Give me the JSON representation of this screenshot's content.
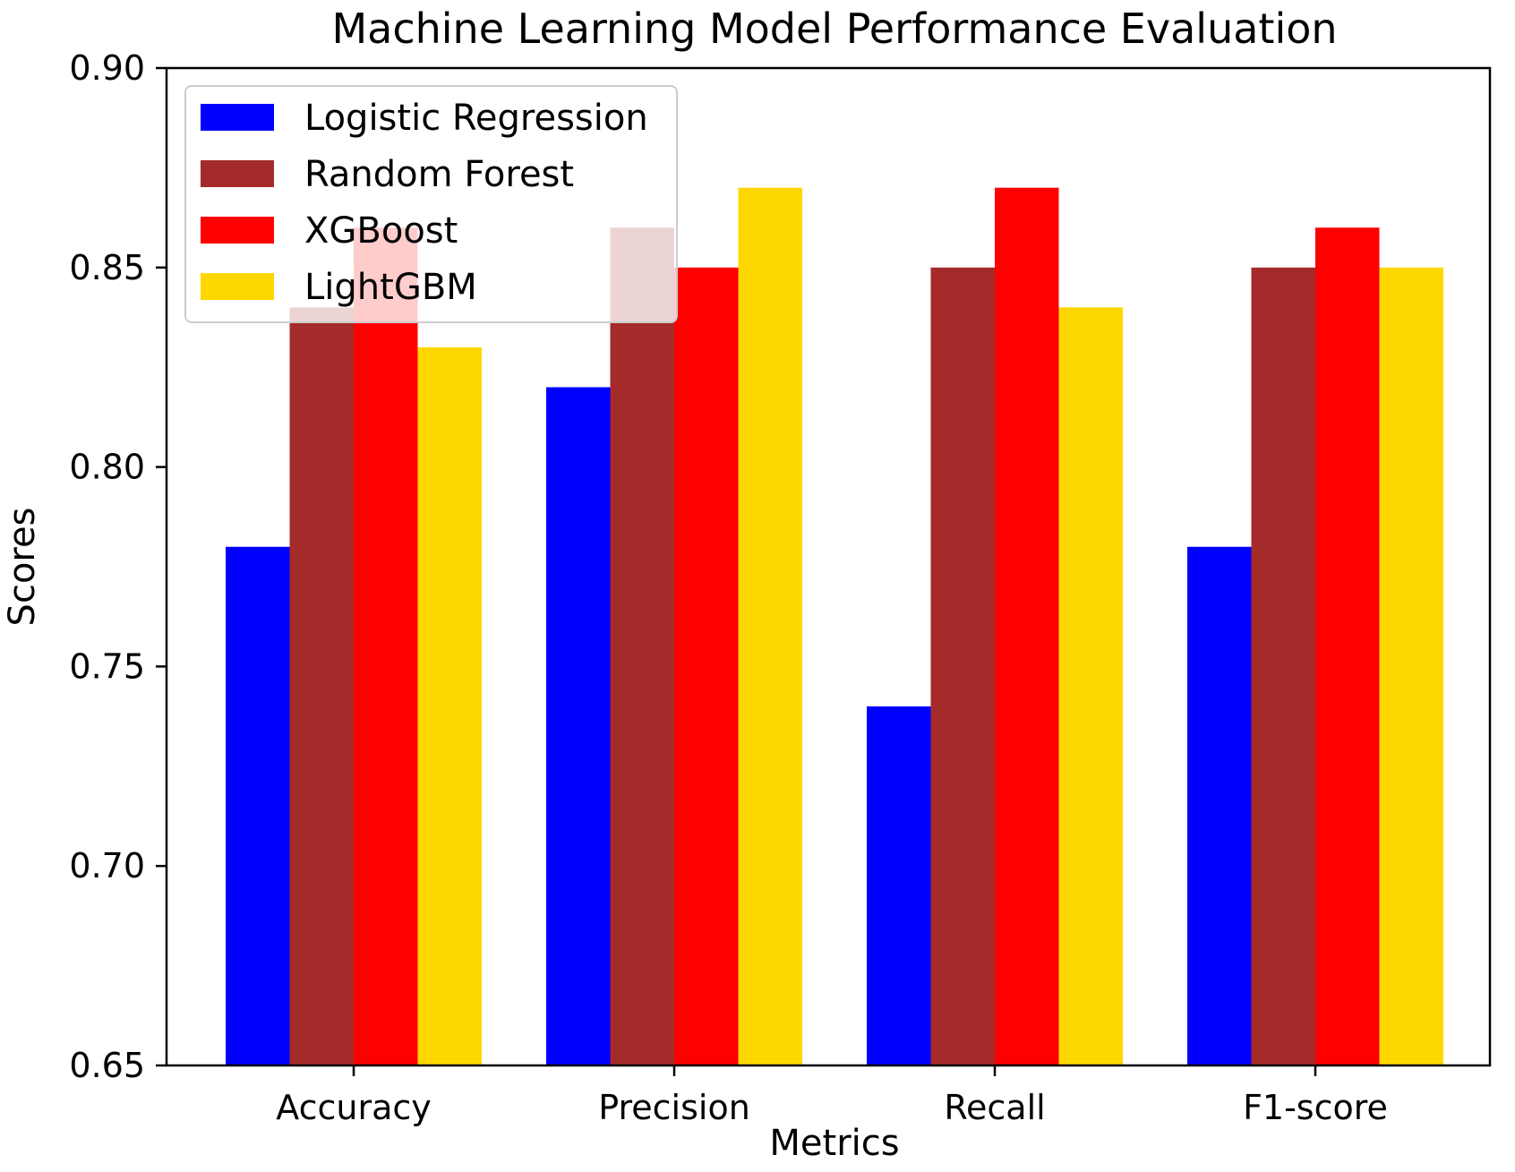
{
  "chart_data": {
    "type": "bar",
    "title": "Machine Learning Model Performance Evaluation",
    "xlabel": "Metrics",
    "ylabel": "Scores",
    "categories": [
      "Accuracy",
      "Precision",
      "Recall",
      "F1-score"
    ],
    "ylim": [
      0.65,
      0.9
    ],
    "yticks": [
      "0.65",
      "0.70",
      "0.75",
      "0.80",
      "0.85",
      "0.90"
    ],
    "grid": false,
    "legend": "upper-left",
    "series": [
      {
        "name": "Logistic Regression",
        "color": "#0000ff",
        "values": [
          0.78,
          0.82,
          0.74,
          0.78
        ]
      },
      {
        "name": "Random Forest",
        "color": "#a52a2a",
        "values": [
          0.84,
          0.86,
          0.85,
          0.85
        ]
      },
      {
        "name": "XGBoost",
        "color": "#ff0000",
        "values": [
          0.86,
          0.85,
          0.87,
          0.86
        ]
      },
      {
        "name": "LightGBM",
        "color": "#ffd700",
        "values": [
          0.83,
          0.87,
          0.84,
          0.85
        ]
      }
    ]
  }
}
